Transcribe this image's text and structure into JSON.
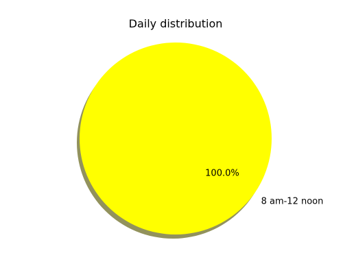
{
  "chart_data": {
    "type": "pie",
    "title": "Daily distribution",
    "categories": [
      "8 am-12 noon"
    ],
    "values": [
      100
    ],
    "percent_labels": [
      "100.0%"
    ],
    "colors": [
      "#ffff00"
    ],
    "shadow": true,
    "legend": false
  }
}
